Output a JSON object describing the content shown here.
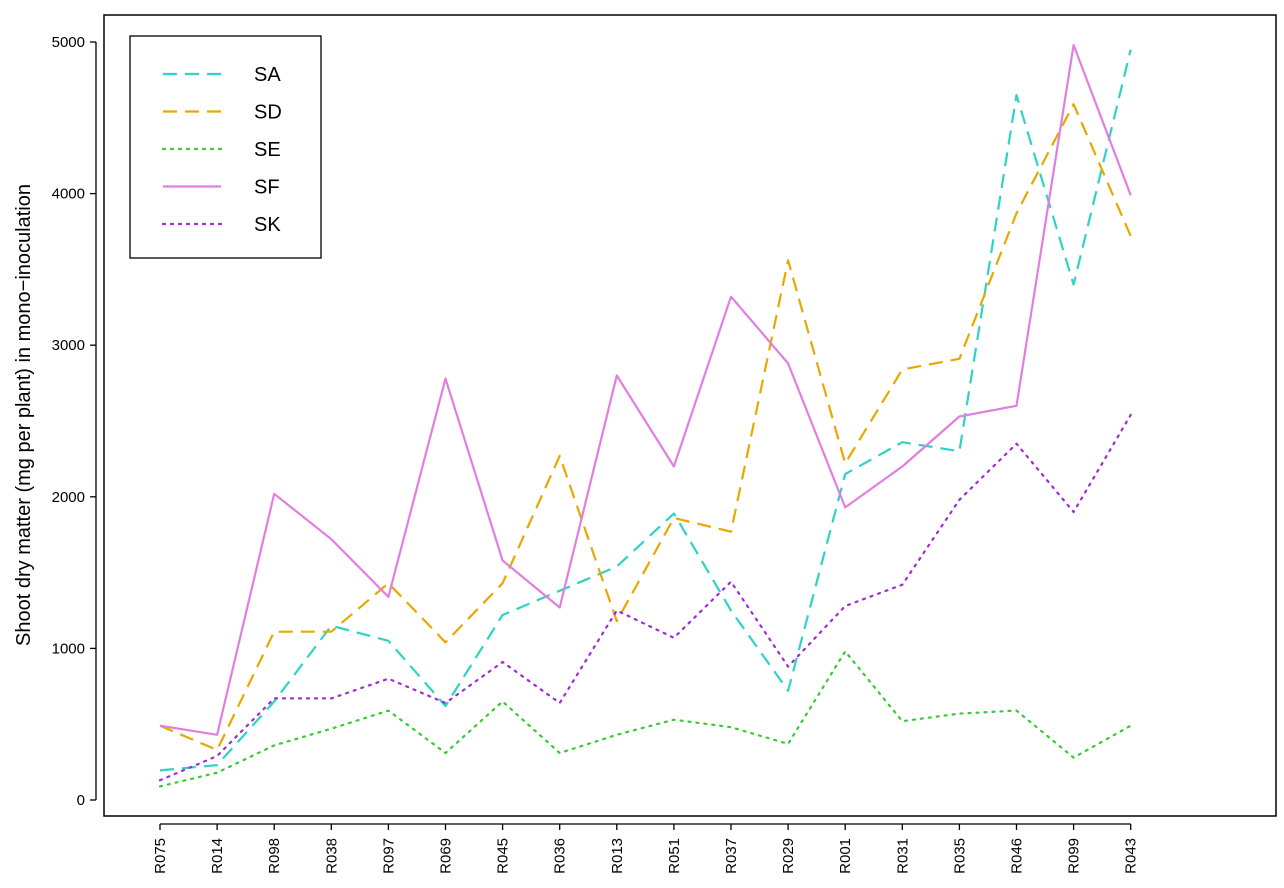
{
  "chart_data": {
    "type": "line",
    "ylabel": "Shoot dry matter (mg per plant) in mono−inoculation",
    "xlabel": "",
    "categories": [
      "R075",
      "R014",
      "R098",
      "R038",
      "R097",
      "R069",
      "R045",
      "R036",
      "R013",
      "R051",
      "R037",
      "R029",
      "R001",
      "R031",
      "R035",
      "R046",
      "R099",
      "R043"
    ],
    "ylim": [
      0,
      5000
    ],
    "yticks": [
      "0",
      "1000",
      "2000",
      "3000",
      "4000",
      "5000"
    ],
    "grid": false,
    "legend_position": "top-left",
    "series": [
      {
        "name": "SA",
        "color": "#2ed3c5",
        "dash": "dashed",
        "values": [
          195,
          230,
          650,
          1150,
          1050,
          620,
          1220,
          1380,
          1540,
          1890,
          1250,
          720,
          2150,
          2360,
          2300,
          4650,
          3400,
          4950
        ]
      },
      {
        "name": "SD",
        "color": "#e8a800",
        "dash": "dashed",
        "values": [
          490,
          330,
          1110,
          1110,
          1430,
          1040,
          1430,
          2270,
          1180,
          1860,
          1770,
          3560,
          2220,
          2840,
          2910,
          3870,
          4590,
          3720
        ]
      },
      {
        "name": "SE",
        "color": "#33cc33",
        "dash": "dotted",
        "values": [
          90,
          180,
          360,
          470,
          590,
          310,
          650,
          310,
          430,
          530,
          480,
          370,
          980,
          520,
          570,
          590,
          280,
          490
        ]
      },
      {
        "name": "SF",
        "color": "#e27ee0",
        "dash": "solid",
        "values": [
          490,
          430,
          2020,
          1720,
          1340,
          2780,
          1580,
          1270,
          2800,
          2200,
          3320,
          2880,
          1930,
          2200,
          2530,
          2600,
          4980,
          3990
        ]
      },
      {
        "name": "SK",
        "color": "#a12ad8",
        "dash": "dotted",
        "values": [
          130,
          290,
          670,
          670,
          800,
          640,
          910,
          640,
          1250,
          1070,
          1440,
          880,
          1280,
          1420,
          1980,
          2350,
          1900,
          2540
        ]
      }
    ]
  }
}
